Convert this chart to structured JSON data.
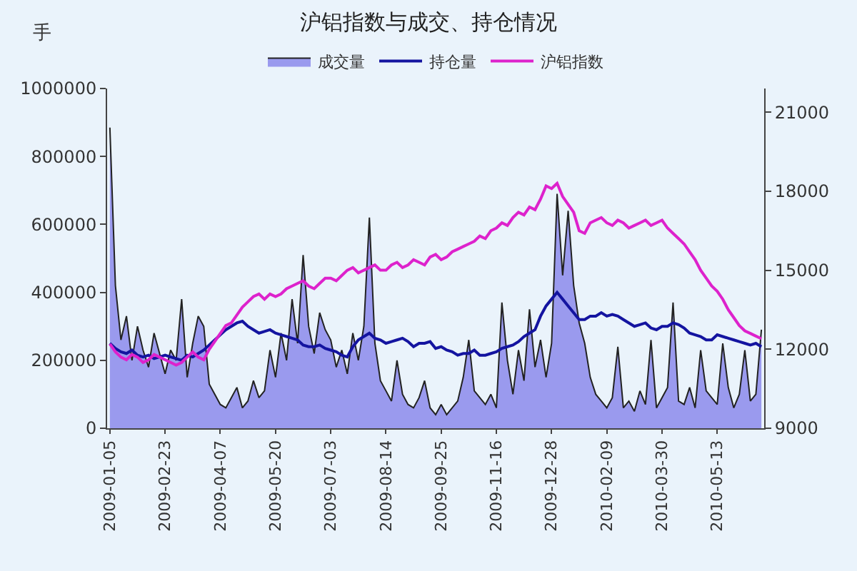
{
  "chart_data": {
    "type": "line",
    "title": "沪铝指数与成交、持仓情况",
    "ylabel": "手",
    "legend": "top",
    "grid": false,
    "categories": [
      "2009-01-05",
      null,
      null,
      null,
      null,
      null,
      null,
      null,
      null,
      null,
      "2009-02-23",
      null,
      null,
      null,
      null,
      null,
      null,
      null,
      null,
      null,
      "2009-04-07",
      null,
      null,
      null,
      null,
      null,
      null,
      null,
      null,
      null,
      "2009-05-20",
      null,
      null,
      null,
      null,
      null,
      null,
      null,
      null,
      null,
      "2009-07-03",
      null,
      null,
      null,
      null,
      null,
      null,
      null,
      null,
      null,
      "2009-08-14",
      null,
      null,
      null,
      null,
      null,
      null,
      null,
      null,
      null,
      "2009-09-25",
      null,
      null,
      null,
      null,
      null,
      null,
      null,
      null,
      null,
      "2009-11-16",
      null,
      null,
      null,
      null,
      null,
      null,
      null,
      null,
      null,
      "2009-12-28",
      null,
      null,
      null,
      null,
      null,
      null,
      null,
      null,
      null,
      "2010-02-09",
      null,
      null,
      null,
      null,
      null,
      null,
      null,
      null,
      null,
      "2010-03-30",
      null,
      null,
      null,
      null,
      null,
      null,
      null,
      null,
      null,
      "2010-05-13",
      null,
      null,
      null,
      null,
      null,
      null,
      null,
      null
    ],
    "ylim": [
      0,
      1000000
    ],
    "yticks": [
      0,
      200000,
      400000,
      600000,
      800000,
      1000000
    ],
    "y2lim": [
      9000,
      21900
    ],
    "y2ticks": [
      9000,
      12000,
      15000,
      18000,
      21000
    ],
    "series": [
      {
        "name": "成交量",
        "type": "area",
        "color": "#9a9aee",
        "values": [
          885000,
          420000,
          260000,
          330000,
          200000,
          300000,
          230000,
          180000,
          280000,
          220000,
          160000,
          230000,
          200000,
          380000,
          150000,
          250000,
          330000,
          300000,
          130000,
          100000,
          70000,
          60000,
          90000,
          120000,
          60000,
          80000,
          140000,
          90000,
          110000,
          230000,
          150000,
          280000,
          200000,
          380000,
          250000,
          510000,
          300000,
          220000,
          340000,
          290000,
          260000,
          180000,
          230000,
          160000,
          280000,
          200000,
          300000,
          620000,
          250000,
          140000,
          110000,
          80000,
          200000,
          100000,
          70000,
          60000,
          90000,
          140000,
          60000,
          40000,
          70000,
          40000,
          60000,
          80000,
          150000,
          260000,
          110000,
          90000,
          70000,
          100000,
          60000,
          370000,
          200000,
          100000,
          230000,
          140000,
          350000,
          180000,
          260000,
          150000,
          250000,
          690000,
          450000,
          640000,
          420000,
          310000,
          250000,
          150000,
          100000,
          80000,
          60000,
          90000,
          240000,
          60000,
          80000,
          50000,
          110000,
          70000,
          260000,
          60000,
          90000,
          120000,
          370000,
          80000,
          70000,
          120000,
          60000,
          230000,
          110000,
          90000,
          70000,
          250000,
          120000,
          60000,
          100000,
          230000,
          80000,
          100000,
          290000
        ]
      },
      {
        "name": "持仓量",
        "color": "#1414a0",
        "values": [
          250000,
          235000,
          225000,
          220000,
          230000,
          215000,
          210000,
          215000,
          205000,
          210000,
          215000,
          210000,
          205000,
          200000,
          215000,
          210000,
          220000,
          230000,
          245000,
          260000,
          275000,
          290000,
          300000,
          310000,
          315000,
          300000,
          290000,
          280000,
          285000,
          290000,
          280000,
          275000,
          270000,
          265000,
          260000,
          245000,
          240000,
          240000,
          245000,
          235000,
          230000,
          225000,
          215000,
          210000,
          240000,
          260000,
          270000,
          280000,
          265000,
          260000,
          250000,
          255000,
          260000,
          265000,
          255000,
          240000,
          250000,
          250000,
          255000,
          235000,
          240000,
          230000,
          225000,
          215000,
          220000,
          220000,
          230000,
          215000,
          215000,
          220000,
          225000,
          235000,
          240000,
          245000,
          255000,
          270000,
          280000,
          290000,
          330000,
          360000,
          380000,
          400000,
          380000,
          360000,
          340000,
          320000,
          320000,
          330000,
          330000,
          340000,
          330000,
          335000,
          330000,
          320000,
          310000,
          300000,
          305000,
          310000,
          295000,
          290000,
          300000,
          300000,
          310000,
          305000,
          295000,
          280000,
          275000,
          270000,
          260000,
          260000,
          275000,
          270000,
          265000,
          260000,
          255000,
          250000,
          245000,
          250000,
          240000
        ]
      },
      {
        "name": "沪铝指数",
        "axis": "y2",
        "color": "#dd22cc",
        "values": [
          12200,
          11900,
          11700,
          11600,
          11800,
          11700,
          11500,
          11600,
          11800,
          11700,
          11600,
          11500,
          11400,
          11500,
          11700,
          11900,
          11700,
          11600,
          12000,
          12300,
          12600,
          12900,
          13000,
          13300,
          13600,
          13800,
          14000,
          14100,
          13900,
          14100,
          14000,
          14100,
          14300,
          14400,
          14500,
          14600,
          14400,
          14300,
          14500,
          14700,
          14700,
          14600,
          14800,
          15000,
          15100,
          14900,
          15000,
          15100,
          15200,
          15000,
          15000,
          15200,
          15300,
          15100,
          15200,
          15400,
          15300,
          15200,
          15500,
          15600,
          15400,
          15500,
          15700,
          15800,
          15900,
          16000,
          16100,
          16300,
          16200,
          16500,
          16600,
          16800,
          16700,
          17000,
          17200,
          17100,
          17400,
          17300,
          17700,
          18200,
          18100,
          18300,
          17800,
          17500,
          17200,
          16500,
          16400,
          16800,
          16900,
          17000,
          16800,
          16700,
          16900,
          16800,
          16600,
          16700,
          16800,
          16900,
          16700,
          16800,
          16900,
          16600,
          16400,
          16200,
          16000,
          15700,
          15400,
          15000,
          14700,
          14400,
          14200,
          13900,
          13500,
          13200,
          12900,
          12700,
          12600,
          12500,
          12400
        ]
      }
    ]
  }
}
